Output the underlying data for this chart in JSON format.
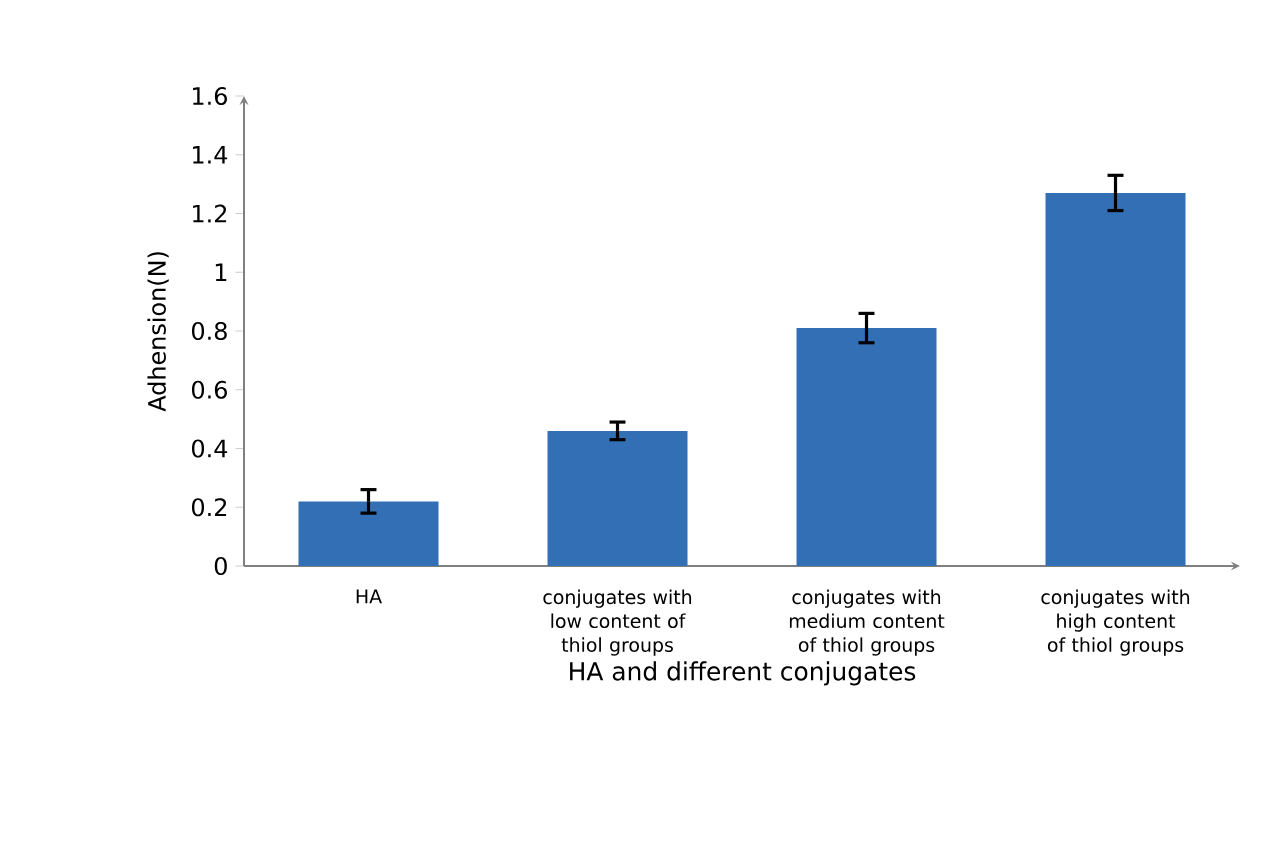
{
  "chart_data": {
    "type": "bar",
    "xlabel": "HA and different conjugates",
    "ylabel": "Adhension(N)",
    "categories": [
      "HA",
      "conjugates with low content of thiol groups",
      "conjugates with medium content of thiol groups",
      "conjugates with high content of thiol groups"
    ],
    "values": [
      0.22,
      0.46,
      0.81,
      1.27
    ],
    "errors": [
      0.04,
      0.03,
      0.05,
      0.06
    ],
    "color": "#336fb4",
    "ylim": [
      0,
      1.6
    ],
    "yticks": [
      0,
      0.2,
      0.4,
      0.6,
      0.8,
      1,
      1.2,
      1.4,
      1.6
    ]
  }
}
